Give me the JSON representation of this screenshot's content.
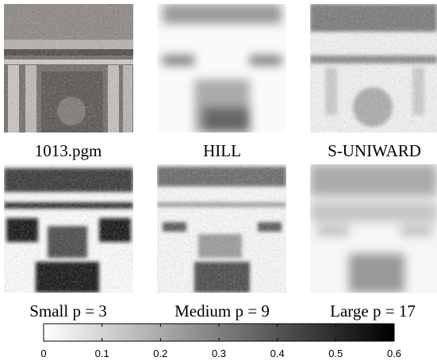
{
  "panels": {
    "captions": [
      "1013.pgm",
      "HILL",
      "S-UNIWARD",
      "Small p = 3",
      "Medium p = 9",
      "Large p = 17"
    ]
  },
  "colorbar": {
    "clim": [
      0,
      0.6
    ],
    "ticks": [
      0,
      0.1,
      0.2,
      0.3,
      0.4,
      0.5,
      0.6
    ],
    "colors": [
      "#ffffff",
      "#000000"
    ]
  }
}
